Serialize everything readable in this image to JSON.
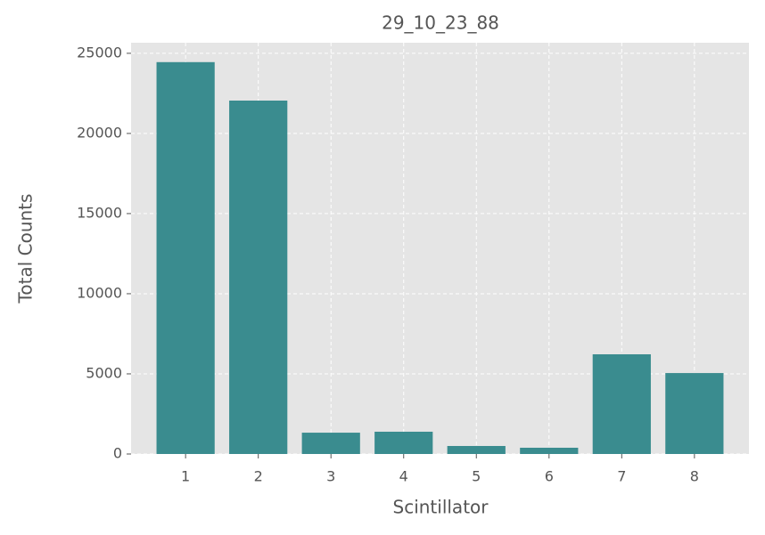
{
  "chart_data": {
    "type": "bar",
    "title": "29_10_23_88",
    "x_label": "Scintillator",
    "y_label": "Total Counts",
    "categories": [
      "1",
      "2",
      "3",
      "4",
      "5",
      "6",
      "7",
      "8"
    ],
    "values": [
      24450,
      22050,
      1330,
      1390,
      500,
      390,
      6220,
      5050
    ],
    "color": "#3a8c8f",
    "ylim": [
      0,
      25660
    ],
    "yticks": [
      0,
      5000,
      10000,
      15000,
      20000,
      25000
    ],
    "grid": true
  }
}
